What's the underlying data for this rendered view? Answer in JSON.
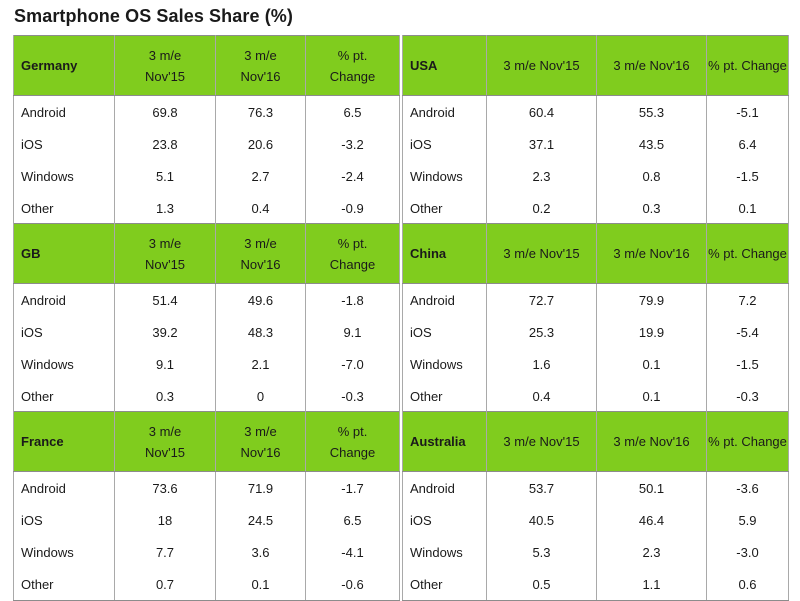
{
  "title": "Smartphone OS Sales Share (%)",
  "colors": {
    "header_green": "#80cc1e"
  },
  "chart_data": [
    {
      "type": "table",
      "region": "Germany",
      "columns": [
        "3 m/e Nov'15",
        "3 m/e Nov'16",
        "% pt. Change"
      ],
      "rows": [
        {
          "os": "Android",
          "values": [
            "69.8",
            "76.3",
            "6.5"
          ]
        },
        {
          "os": "iOS",
          "values": [
            "23.8",
            "20.6",
            "-3.2"
          ]
        },
        {
          "os": "Windows",
          "values": [
            "5.1",
            "2.7",
            "-2.4"
          ]
        },
        {
          "os": "Other",
          "values": [
            "1.3",
            "0.4",
            "-0.9"
          ]
        }
      ]
    },
    {
      "type": "table",
      "region": "USA",
      "columns": [
        "3 m/e Nov'15",
        "3 m/e Nov'16",
        "% pt. Change"
      ],
      "rows": [
        {
          "os": "Android",
          "values": [
            "60.4",
            "55.3",
            "-5.1"
          ]
        },
        {
          "os": "iOS",
          "values": [
            "37.1",
            "43.5",
            "6.4"
          ]
        },
        {
          "os": "Windows",
          "values": [
            "2.3",
            "0.8",
            "-1.5"
          ]
        },
        {
          "os": "Other",
          "values": [
            "0.2",
            "0.3",
            "0.1"
          ]
        }
      ]
    },
    {
      "type": "table",
      "region": "GB",
      "columns": [
        "3 m/e Nov'15",
        "3 m/e Nov'16",
        "% pt. Change"
      ],
      "rows": [
        {
          "os": "Android",
          "values": [
            "51.4",
            "49.6",
            "-1.8"
          ]
        },
        {
          "os": "iOS",
          "values": [
            "39.2",
            "48.3",
            "9.1"
          ]
        },
        {
          "os": "Windows",
          "values": [
            "9.1",
            "2.1",
            "-7.0"
          ]
        },
        {
          "os": "Other",
          "values": [
            "0.3",
            "0",
            "-0.3"
          ]
        }
      ]
    },
    {
      "type": "table",
      "region": "China",
      "columns": [
        "3 m/e Nov'15",
        "3 m/e Nov'16",
        "% pt. Change"
      ],
      "rows": [
        {
          "os": "Android",
          "values": [
            "72.7",
            "79.9",
            "7.2"
          ]
        },
        {
          "os": "iOS",
          "values": [
            "25.3",
            "19.9",
            "-5.4"
          ]
        },
        {
          "os": "Windows",
          "values": [
            "1.6",
            "0.1",
            "-1.5"
          ]
        },
        {
          "os": "Other",
          "values": [
            "0.4",
            "0.1",
            "-0.3"
          ]
        }
      ]
    },
    {
      "type": "table",
      "region": "France",
      "columns": [
        "3 m/e Nov'15",
        "3 m/e Nov'16",
        "% pt. Change"
      ],
      "rows": [
        {
          "os": "Android",
          "values": [
            "73.6",
            "71.9",
            "-1.7"
          ]
        },
        {
          "os": "iOS",
          "values": [
            "18",
            "24.5",
            "6.5"
          ]
        },
        {
          "os": "Windows",
          "values": [
            "7.7",
            "3.6",
            "-4.1"
          ]
        },
        {
          "os": "Other",
          "values": [
            "0.7",
            "0.1",
            "-0.6"
          ]
        }
      ]
    },
    {
      "type": "table",
      "region": "Australia",
      "columns": [
        "3 m/e Nov'15",
        "3 m/e Nov'16",
        "% pt. Change"
      ],
      "rows": [
        {
          "os": "Android",
          "values": [
            "53.7",
            "50.1",
            "-3.6"
          ]
        },
        {
          "os": "iOS",
          "values": [
            "40.5",
            "46.4",
            "5.9"
          ]
        },
        {
          "os": "Windows",
          "values": [
            "5.3",
            "2.3",
            "-3.0"
          ]
        },
        {
          "os": "Other",
          "values": [
            "0.5",
            "1.1",
            "0.6"
          ]
        }
      ]
    }
  ]
}
